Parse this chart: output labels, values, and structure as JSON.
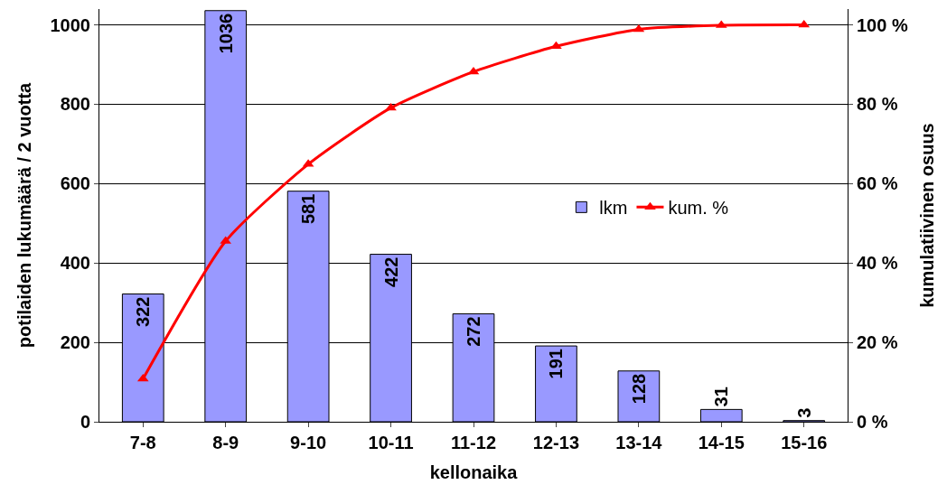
{
  "chart_data": {
    "type": "bar",
    "xlabel": "kellonaika",
    "ylabel": "potilaiden lukumäärä / 2 vuotta",
    "y2label": "kumulatiivinen osuus",
    "categories": [
      "7-8",
      "8-9",
      "9-10",
      "10-11",
      "11-12",
      "12-13",
      "13-14",
      "14-15",
      "15-16"
    ],
    "series": [
      {
        "name": "lkm",
        "color": "#9999ff",
        "values": [
          322,
          1036,
          581,
          422,
          272,
          191,
          128,
          31,
          3
        ],
        "data_labels": true
      },
      {
        "name": "kum. %",
        "type": "line",
        "axis": "y2",
        "color": "#ff0000",
        "marker": "triangle",
        "values": [
          10.8,
          45.5,
          64.9,
          79.1,
          88.2,
          94.6,
          98.9,
          99.9,
          100
        ]
      }
    ],
    "ylim": [
      0,
      1040
    ],
    "yticks": [
      0,
      200,
      400,
      600,
      800,
      1000
    ],
    "y2lim": [
      0,
      104
    ],
    "y2ticks": [
      {
        "value": 0,
        "label": "0 %"
      },
      {
        "value": 20,
        "label": "20 %"
      },
      {
        "value": 40,
        "label": "40 %"
      },
      {
        "value": 60,
        "label": "60 %"
      },
      {
        "value": 80,
        "label": "80 %"
      },
      {
        "value": 100,
        "label": "100 %"
      }
    ],
    "grid": "y",
    "legend": "right"
  }
}
